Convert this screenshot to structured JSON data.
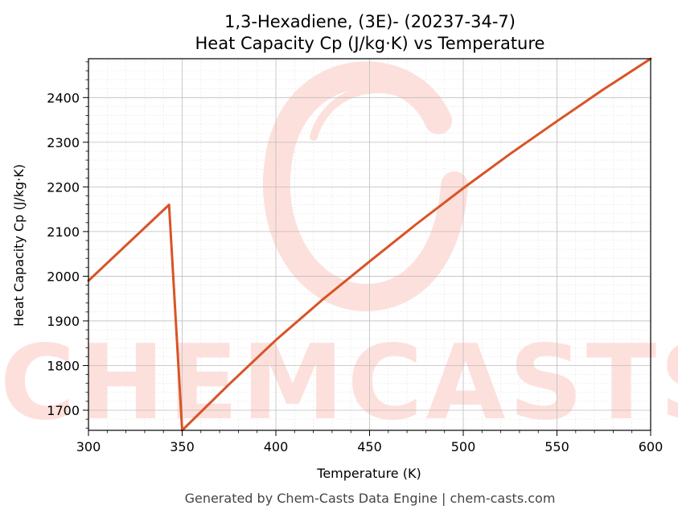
{
  "chart_data": {
    "type": "line",
    "title": "1,3-Hexadiene, (3E)- (20237-34-7)",
    "subtitle": "Heat Capacity Cp (J/kg·K) vs Temperature",
    "xlabel": "Temperature (K)",
    "ylabel": "Heat Capacity Cp (J/kg·K)",
    "xlim": [
      300,
      600
    ],
    "ylim": [
      1655,
      2487
    ],
    "xticks": [
      300,
      350,
      400,
      450,
      500,
      550,
      600
    ],
    "yticks": [
      1700,
      1800,
      1900,
      2000,
      2100,
      2200,
      2300,
      2400
    ],
    "grid": true,
    "series": [
      {
        "color": "#d95326",
        "points": [
          [
            300,
            1990
          ],
          [
            343,
            2160
          ],
          [
            350,
            1655
          ],
          [
            375,
            1758
          ],
          [
            400,
            1857
          ],
          [
            425,
            1948
          ],
          [
            450,
            2033
          ],
          [
            475,
            2117
          ],
          [
            500,
            2197
          ],
          [
            525,
            2274
          ],
          [
            550,
            2347
          ],
          [
            575,
            2419
          ],
          [
            600,
            2487
          ]
        ]
      }
    ]
  },
  "watermark": {
    "text": "CHEMCASTS"
  },
  "footer": {
    "text": "Generated by Chem-Casts Data Engine | chem-casts.com"
  }
}
